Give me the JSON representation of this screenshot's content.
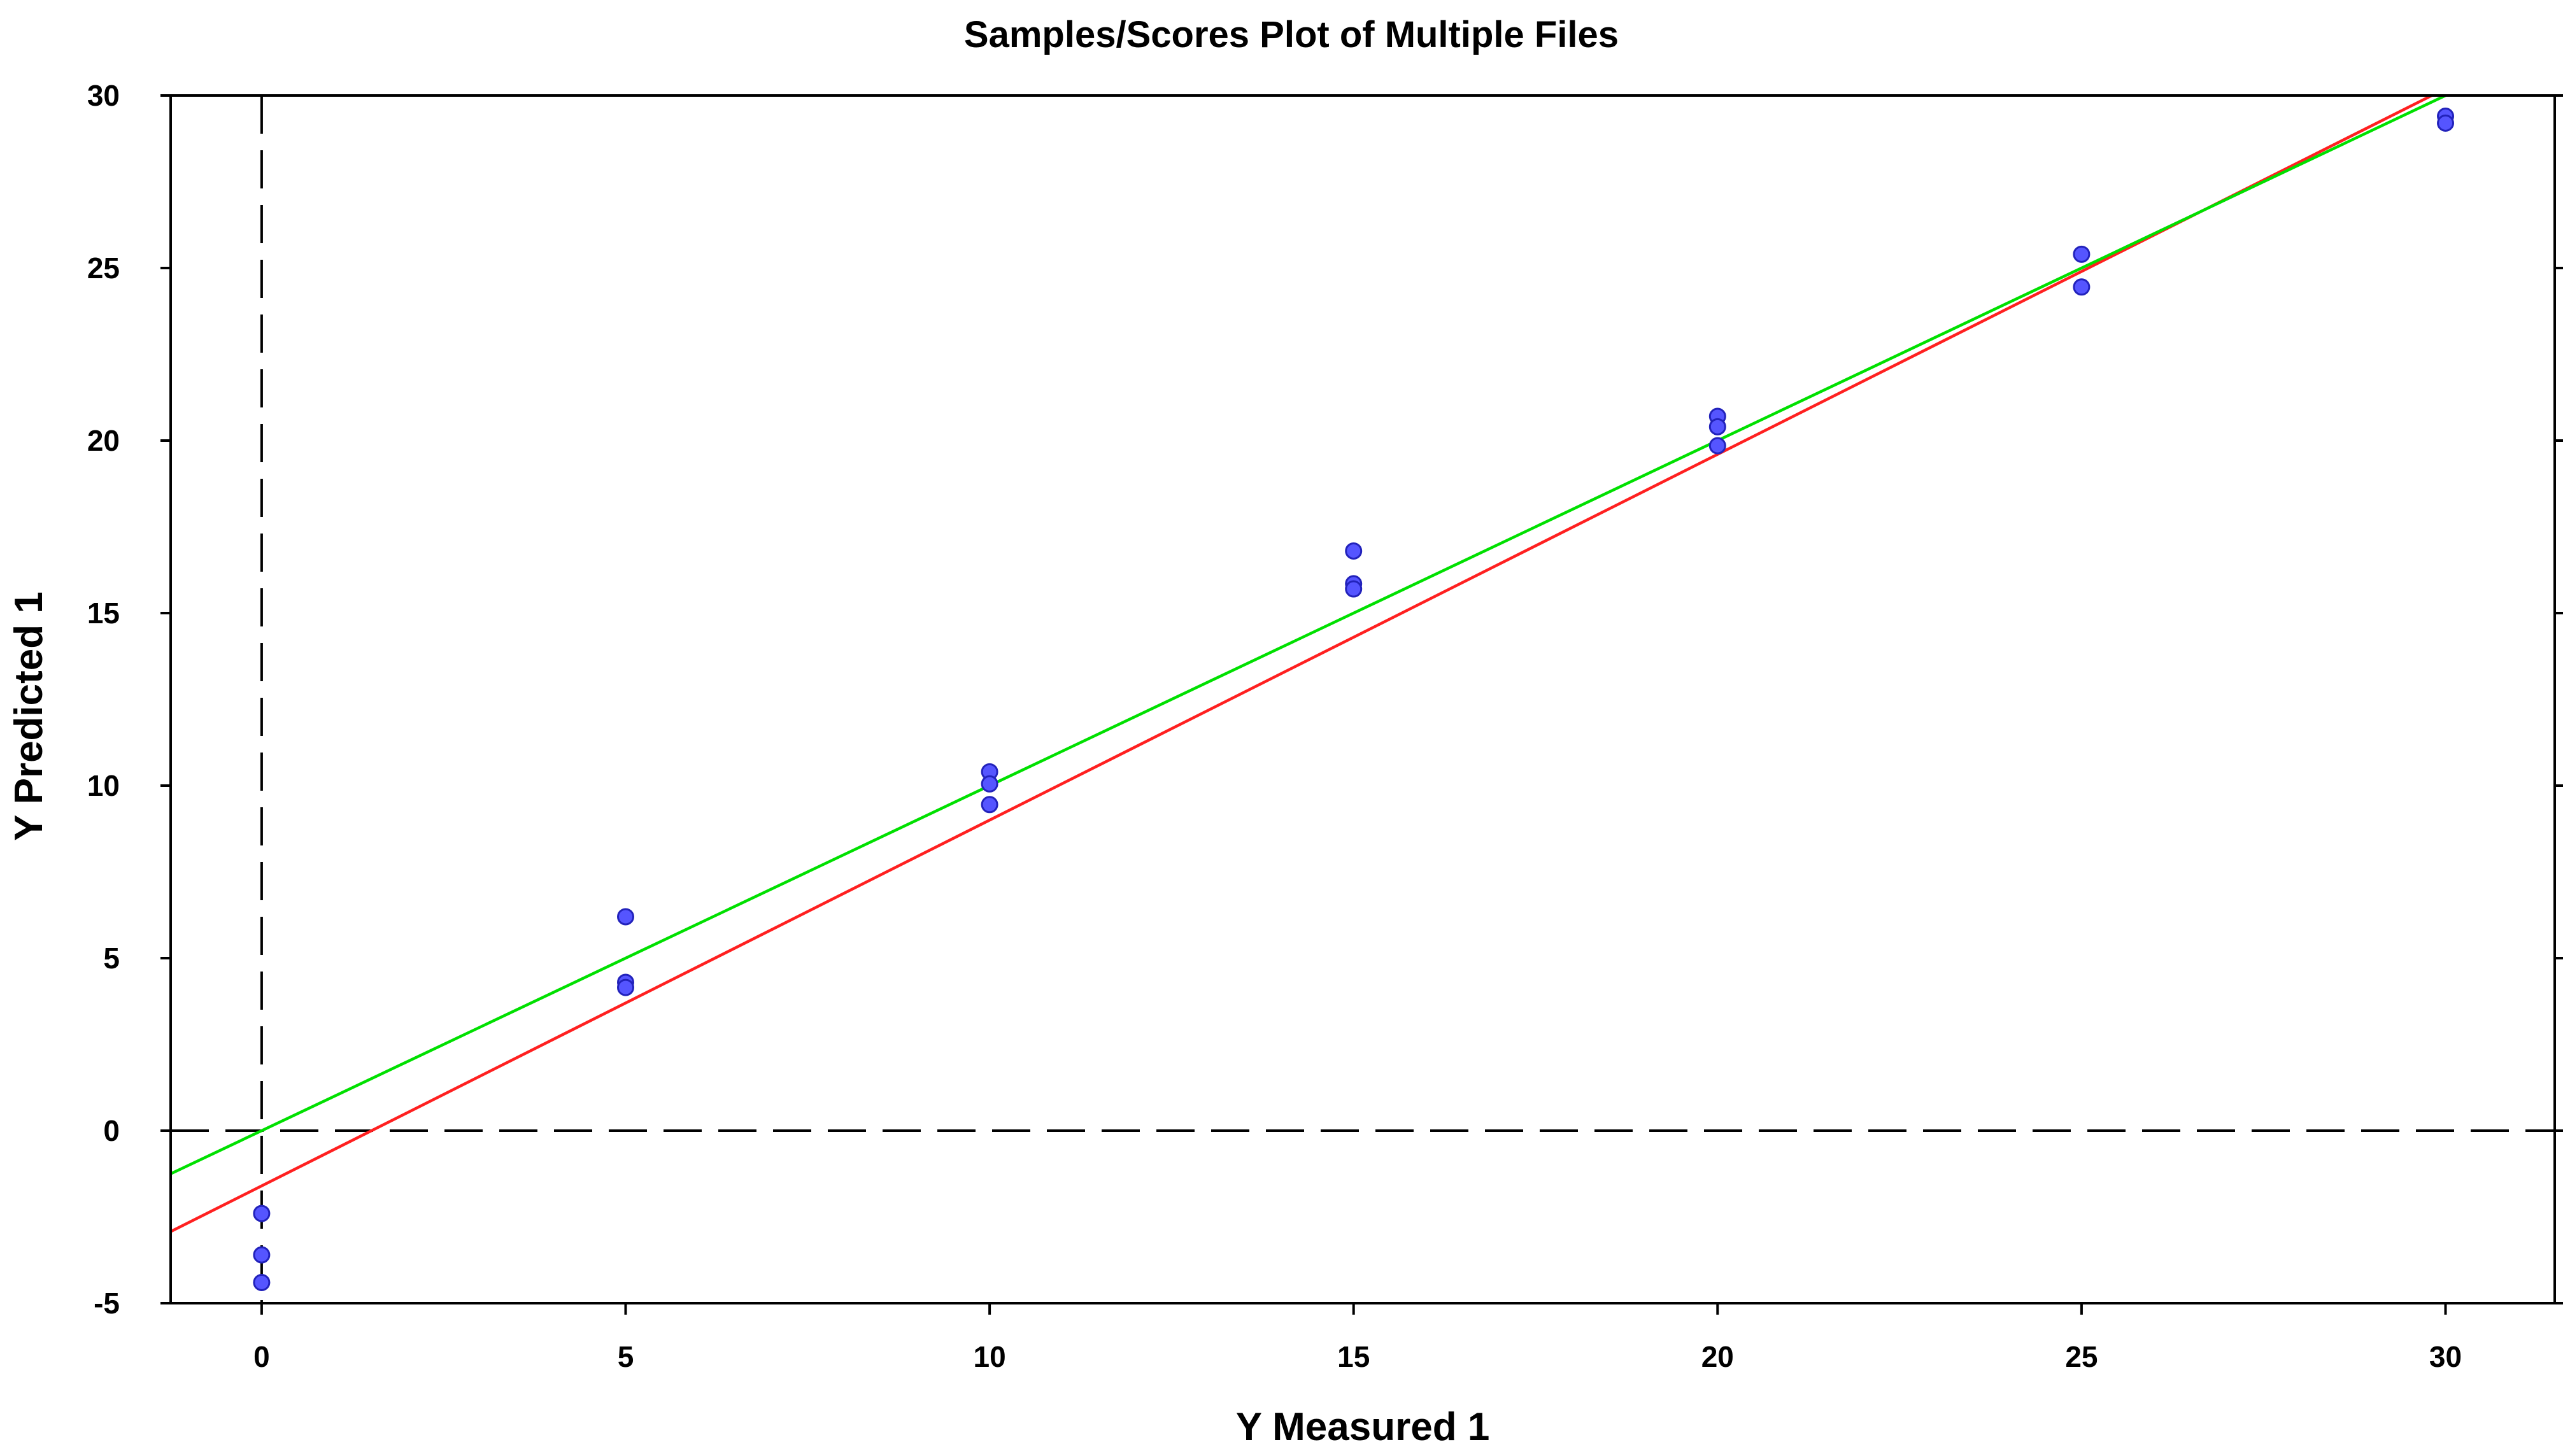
{
  "chart_data": {
    "type": "scatter",
    "title": "Samples/Scores Plot of Multiple  Files",
    "xlabel": "Y Measured 1",
    "ylabel": "Y Predicted 1",
    "xlim": [
      -1.25,
      31.5
    ],
    "ylim": [
      -5,
      30
    ],
    "xticks": [
      "0",
      "5",
      "10",
      "15",
      "20",
      "25",
      "30"
    ],
    "yticks": [
      "30",
      "25",
      "20",
      "15",
      "10",
      "5",
      "0",
      "-5"
    ],
    "grid": false,
    "reference_lines": [
      {
        "orientation": "vertical",
        "value": 0,
        "style": "dashed",
        "color": "#000000"
      },
      {
        "orientation": "horizontal",
        "value": 0,
        "style": "dashed",
        "color": "#000000"
      }
    ],
    "fit_lines": [
      {
        "color": "#ff2020",
        "slope": 1.06,
        "intercept": -1.6
      },
      {
        "color": "#00e000",
        "slope": 1.0,
        "intercept": 0.0
      }
    ],
    "point_color": "#5555ff",
    "points": [
      {
        "x": 0,
        "y": -2.4
      },
      {
        "x": 0,
        "y": -3.6
      },
      {
        "x": 0,
        "y": -4.4
      },
      {
        "x": 5,
        "y": 6.2
      },
      {
        "x": 5,
        "y": 4.3
      },
      {
        "x": 5,
        "y": 4.15
      },
      {
        "x": 10,
        "y": 10.4
      },
      {
        "x": 10,
        "y": 10.05
      },
      {
        "x": 10,
        "y": 9.45
      },
      {
        "x": 15,
        "y": 16.8
      },
      {
        "x": 15,
        "y": 15.85
      },
      {
        "x": 15,
        "y": 15.7
      },
      {
        "x": 20,
        "y": 20.7
      },
      {
        "x": 20,
        "y": 20.4
      },
      {
        "x": 20,
        "y": 19.85
      },
      {
        "x": 25,
        "y": 25.4
      },
      {
        "x": 25,
        "y": 24.45
      },
      {
        "x": 30,
        "y": 29.4
      },
      {
        "x": 30,
        "y": 29.2
      }
    ]
  }
}
